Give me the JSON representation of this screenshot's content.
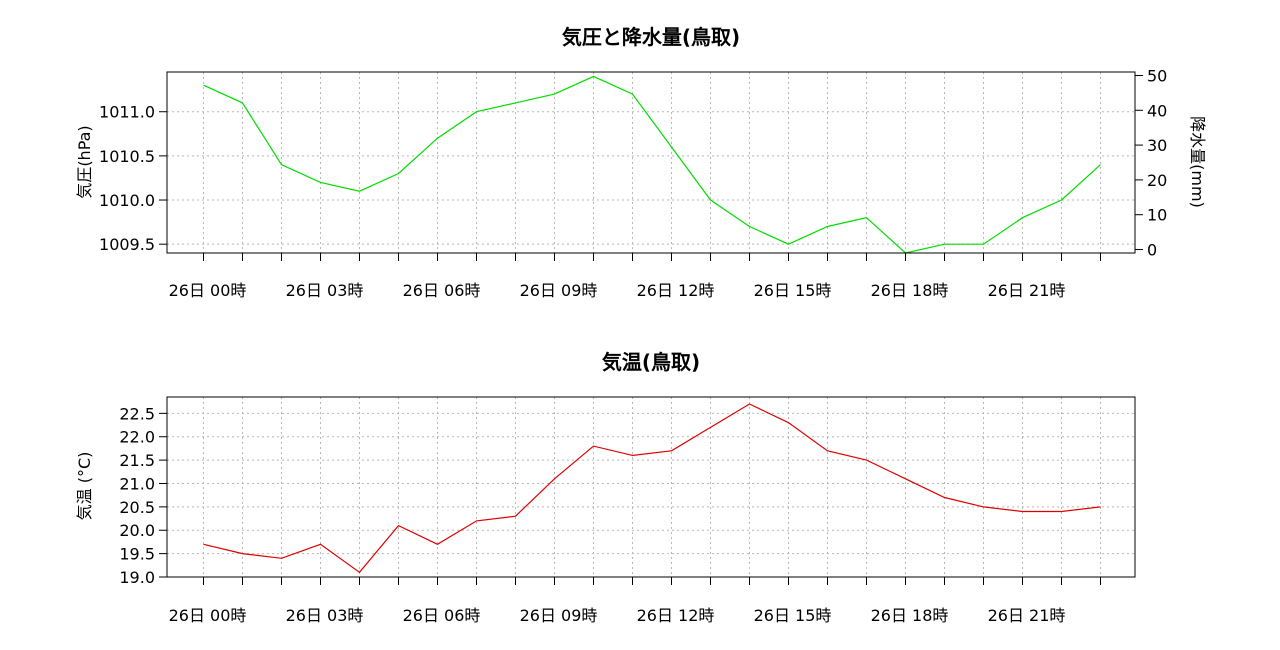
{
  "chart_data": [
    {
      "type": "line",
      "title": "気圧と降水量(鳥取)",
      "ylabel": "気圧(hPa)",
      "y2label": "降水量(mm)",
      "x_tick_labels": [
        "26日 00時",
        "26日 03時",
        "26日 06時",
        "26日 09時",
        "26日 12時",
        "26日 15時",
        "26日 18時",
        "26日 21時"
      ],
      "ylim": [
        1009.4,
        1011.45
      ],
      "yticks": [
        "1009.5",
        "1010.0",
        "1010.5",
        "1011.0"
      ],
      "y2lim": [
        -1,
        51
      ],
      "y2ticks": [
        "0",
        "10",
        "20",
        "30",
        "40",
        "50"
      ],
      "grid": true,
      "series": [
        {
          "color": "#00dd00",
          "values": [
            1011.3,
            1011.1,
            1010.4,
            1010.2,
            1010.1,
            1010.3,
            1010.7,
            1011.0,
            1011.1,
            1011.2,
            1011.4,
            1011.2,
            1010.6,
            1010.0,
            1009.7,
            1009.5,
            1009.7,
            1009.8,
            1009.4,
            1009.5,
            1009.5,
            1009.8,
            1010.0,
            1010.4
          ]
        }
      ]
    },
    {
      "type": "line",
      "title": "気温(鳥取)",
      "ylabel": "気温 (°C)",
      "x_tick_labels": [
        "26日 00時",
        "26日 03時",
        "26日 06時",
        "26日 09時",
        "26日 12時",
        "26日 15時",
        "26日 18時",
        "26日 21時"
      ],
      "ylim": [
        19.0,
        22.85
      ],
      "yticks": [
        "19.0",
        "19.5",
        "20.0",
        "20.5",
        "21.0",
        "21.5",
        "22.0",
        "22.5"
      ],
      "grid": true,
      "series": [
        {
          "color": "#dd0000",
          "values": [
            19.7,
            19.5,
            19.4,
            19.7,
            19.1,
            20.1,
            19.7,
            20.2,
            20.3,
            21.1,
            21.8,
            21.6,
            21.7,
            22.2,
            22.7,
            22.3,
            21.7,
            21.5,
            21.1,
            20.7,
            20.5,
            20.4,
            20.4,
            20.5
          ]
        }
      ]
    }
  ]
}
